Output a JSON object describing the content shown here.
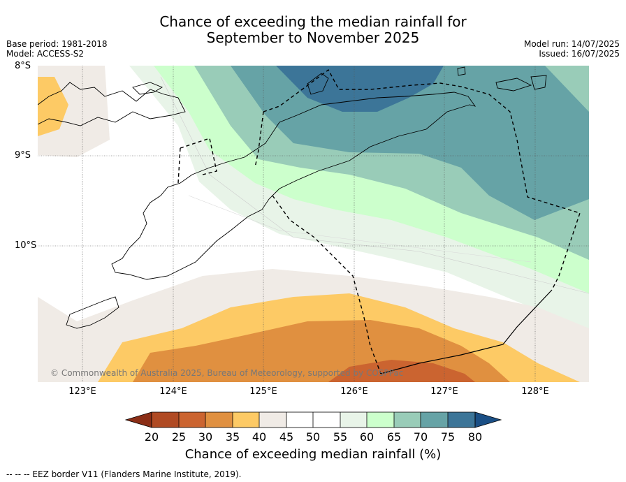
{
  "header": {
    "title_line1": "Chance of exceeding the median rainfall for",
    "title_line2": "September to November 2025",
    "base_period": "Base period: 1981-2018",
    "model": "Model: ACCESS-S2",
    "model_run": "Model run: 14/07/2025",
    "issued": "Issued: 16/07/2025"
  },
  "map": {
    "lat_labels": [
      "8°S",
      "9°S",
      "10°S"
    ],
    "lon_labels": [
      "123°E",
      "124°E",
      "125°E",
      "126°E",
      "127°E",
      "128°E"
    ],
    "copyright": "© Commonwealth of Australia 2025, Bureau of Meteorology, supported by COSPPac"
  },
  "colorbar": {
    "label": "Chance of exceeding median rainfall (%)",
    "ticks": [
      "20",
      "25",
      "30",
      "35",
      "40",
      "45",
      "50",
      "55",
      "60",
      "65",
      "70",
      "75",
      "80"
    ],
    "colors": [
      "#8b2e16",
      "#b04a23",
      "#cb6430",
      "#e09040",
      "#fdca65",
      "#f0ebe6",
      "#ffffff",
      "#ffffff",
      "#e8f4e8",
      "#ccffcc",
      "#99ccb8",
      "#66a3a6",
      "#3c7598",
      "#1a4f85"
    ]
  },
  "footer": {
    "legend": "--  --  -- EEZ border V11 (Flanders Marine Institute, 2019)."
  }
}
